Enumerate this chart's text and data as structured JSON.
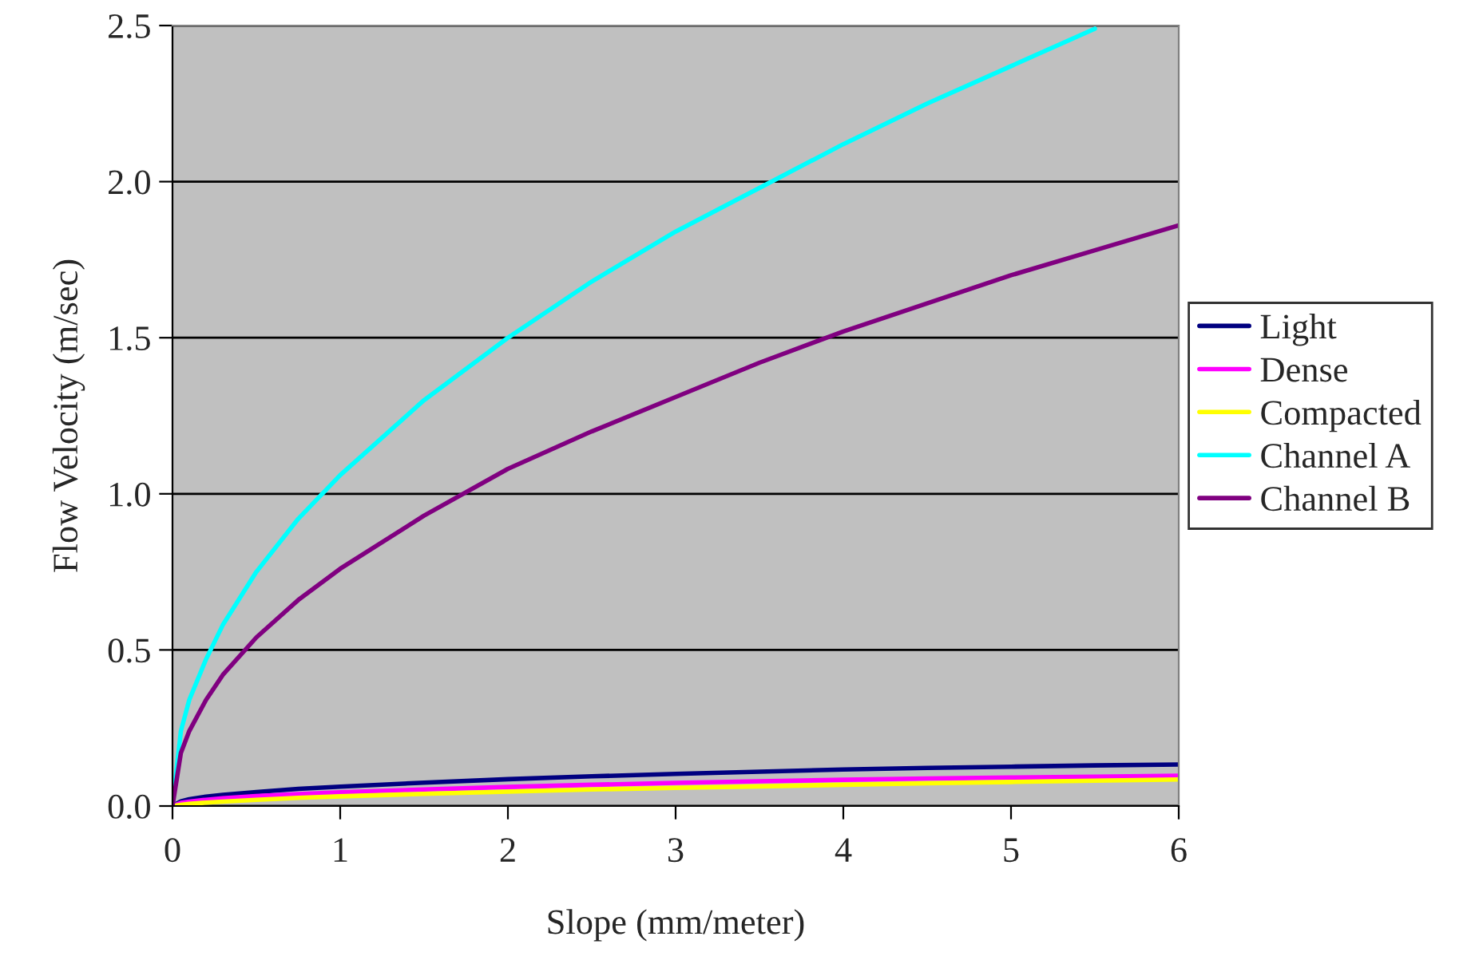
{
  "chart_data": {
    "type": "line",
    "xlabel": "Slope (mm/meter)",
    "ylabel": "Flow Velocity (m/sec)",
    "x": [
      0,
      0.05,
      0.1,
      0.2,
      0.3,
      0.5,
      0.75,
      1,
      1.5,
      2,
      2.5,
      3,
      3.5,
      4,
      4.5,
      5,
      5.5,
      6
    ],
    "series": [
      {
        "name": "Light",
        "color": "#000080",
        "values": [
          0,
          0.015,
          0.022,
          0.03,
          0.036,
          0.045,
          0.055,
          0.062,
          0.075,
          0.086,
          0.095,
          0.103,
          0.11,
          0.117,
          0.122,
          0.126,
          0.13,
          0.133
        ]
      },
      {
        "name": "Dense",
        "color": "#ff00ff",
        "values": [
          0,
          0.01,
          0.014,
          0.02,
          0.025,
          0.032,
          0.038,
          0.044,
          0.053,
          0.061,
          0.068,
          0.074,
          0.079,
          0.084,
          0.088,
          0.091,
          0.094,
          0.097
        ]
      },
      {
        "name": "Compacted",
        "color": "#ffff00",
        "values": [
          0,
          0.004,
          0.007,
          0.011,
          0.014,
          0.02,
          0.026,
          0.031,
          0.039,
          0.046,
          0.053,
          0.058,
          0.063,
          0.068,
          0.073,
          0.077,
          0.081,
          0.085
        ]
      },
      {
        "name": "Channel A",
        "color": "#00ffff",
        "x": [
          0,
          0.05,
          0.1,
          0.2,
          0.3,
          0.5,
          0.75,
          1,
          1.5,
          2,
          2.5,
          3,
          3.5,
          4,
          4.5,
          5,
          5.5
        ],
        "values": [
          0,
          0.24,
          0.34,
          0.47,
          0.58,
          0.75,
          0.92,
          1.06,
          1.3,
          1.5,
          1.68,
          1.84,
          1.98,
          2.12,
          2.25,
          2.37,
          2.49
        ]
      },
      {
        "name": "Channel B",
        "color": "#800080",
        "values": [
          0,
          0.17,
          0.24,
          0.34,
          0.42,
          0.54,
          0.66,
          0.76,
          0.93,
          1.08,
          1.2,
          1.31,
          1.42,
          1.52,
          1.61,
          1.7,
          1.78,
          1.86
        ]
      }
    ],
    "xlim": [
      0,
      6
    ],
    "xticks": [
      0,
      1,
      2,
      3,
      4,
      5,
      6
    ],
    "ylim": [
      0,
      2.5
    ],
    "yticks": [
      {
        "value": 0,
        "label": "0.0"
      },
      {
        "value": 0.5,
        "label": "0.5"
      },
      {
        "value": 1,
        "label": "1.0"
      },
      {
        "value": 1.5,
        "label": "1.5"
      },
      {
        "value": 2,
        "label": "2.0"
      },
      {
        "value": 2.5,
        "label": "2.5"
      }
    ],
    "grid": "y",
    "legend": "right",
    "marker": "none",
    "line_style": "solid"
  }
}
